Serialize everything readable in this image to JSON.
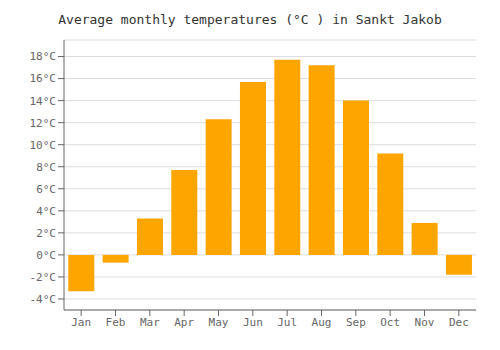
{
  "chart_data": {
    "type": "bar",
    "title": "Average monthly temperatures (°C ) in Sankt Jakob",
    "categories": [
      "Jan",
      "Feb",
      "Mar",
      "Apr",
      "May",
      "Jun",
      "Jul",
      "Aug",
      "Sep",
      "Oct",
      "Nov",
      "Dec"
    ],
    "values": [
      -3.3,
      -0.7,
      3.3,
      7.7,
      12.3,
      15.7,
      17.7,
      17.2,
      14.0,
      9.2,
      2.9,
      -1.8
    ],
    "color": "#FFA500",
    "ylim": [
      -5,
      19.5
    ],
    "yticks": [
      {
        "value": -4,
        "label": "-4°C"
      },
      {
        "value": -2,
        "label": "-2°C"
      },
      {
        "value": 0,
        "label": "0°C"
      },
      {
        "value": 2,
        "label": "2°C"
      },
      {
        "value": 4,
        "label": "4°C"
      },
      {
        "value": 6,
        "label": "6°C"
      },
      {
        "value": 8,
        "label": "8°C"
      },
      {
        "value": 10,
        "label": "10°C"
      },
      {
        "value": 12,
        "label": "12°C"
      },
      {
        "value": 14,
        "label": "14°C"
      },
      {
        "value": 16,
        "label": "16°C"
      },
      {
        "value": 18,
        "label": "18°C"
      }
    ],
    "grid": true
  }
}
